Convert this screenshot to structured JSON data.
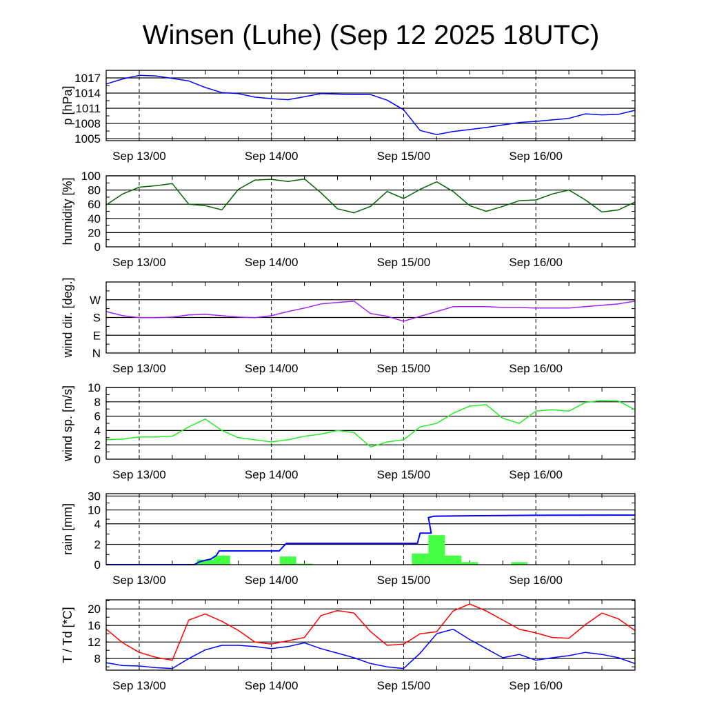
{
  "title": "Winsen (Luhe) (Sep 12 2025 18UTC)",
  "x_hours": [
    0,
    3,
    6,
    9,
    12,
    15,
    18,
    21,
    24,
    27,
    30,
    33,
    36,
    39,
    42,
    45,
    48,
    51,
    54,
    57,
    60,
    63,
    66,
    69,
    72,
    75,
    78,
    81,
    84,
    87,
    90,
    93,
    96
  ],
  "x_range_hours": [
    0,
    96
  ],
  "x_major_ticks": [
    {
      "hour": 6,
      "label": "Sep 13/00"
    },
    {
      "hour": 30,
      "label": "Sep 14/00"
    },
    {
      "hour": 54,
      "label": "Sep 15/00"
    },
    {
      "hour": 78,
      "label": "Sep 16/00"
    }
  ],
  "x_minor_tick_step_hours": 6,
  "chart_data": [
    {
      "id": "pressure",
      "type": "line",
      "ylabel": "p [hPa]",
      "ylim": [
        1004.6,
        1018.5
      ],
      "yticks": [
        {
          "v": 1005,
          "label": "1005"
        },
        {
          "v": 1008,
          "label": "1008"
        },
        {
          "v": 1011,
          "label": "1011"
        },
        {
          "v": 1014,
          "label": "1014"
        },
        {
          "v": 1017,
          "label": "1017"
        }
      ],
      "series": [
        {
          "name": "pressure",
          "color": "#0000ff",
          "values": [
            1015.8,
            1016.8,
            1017.5,
            1017.4,
            1016.9,
            1016.4,
            1015.1,
            1014.1,
            1013.9,
            1013.2,
            1012.9,
            1012.7,
            1013.3,
            1013.9,
            1013.8,
            1013.7,
            1013.7,
            1012.6,
            1010.7,
            1006.6,
            1005.8,
            1006.4,
            1006.8,
            1007.2,
            1007.7,
            1008.2,
            1008.4,
            1008.7,
            1009.0,
            1009.9,
            1009.7,
            1009.8,
            1010.6
          ]
        }
      ]
    },
    {
      "id": "humidity",
      "type": "line",
      "ylabel": "humidity [%]",
      "ylim": [
        0,
        100
      ],
      "yticks": [
        {
          "v": 0,
          "label": "0"
        },
        {
          "v": 20,
          "label": "20"
        },
        {
          "v": 40,
          "label": "40"
        },
        {
          "v": 60,
          "label": "60"
        },
        {
          "v": 80,
          "label": "80"
        },
        {
          "v": 100,
          "label": "100"
        }
      ],
      "series": [
        {
          "name": "humidity",
          "color": "#006400",
          "values": [
            59,
            74.5,
            84,
            86,
            89,
            60,
            58,
            52,
            81,
            94,
            95,
            92,
            95.5,
            76,
            53.5,
            48,
            57,
            78,
            68,
            81,
            91.6,
            78,
            58,
            50,
            57,
            65,
            66,
            74.5,
            80,
            66,
            49,
            52,
            63
          ]
        }
      ]
    },
    {
      "id": "wind-direction",
      "type": "line",
      "ylabel": "wind dir. [deg.]",
      "ylim": [
        0,
        360
      ],
      "yticks": [
        {
          "v": 0,
          "label": "N"
        },
        {
          "v": 90,
          "label": "E"
        },
        {
          "v": 180,
          "label": "S"
        },
        {
          "v": 270,
          "label": "W"
        }
      ],
      "series": [
        {
          "name": "wind direction",
          "color": "#a020f0",
          "values": [
            210,
            189,
            179,
            179,
            182,
            193,
            196,
            189,
            182,
            179,
            189,
            210,
            228,
            249,
            256,
            263,
            200,
            186,
            161,
            186,
            210,
            235,
            235,
            235,
            231,
            231,
            228,
            228,
            228,
            235,
            242,
            249,
            263
          ]
        }
      ]
    },
    {
      "id": "wind-speed",
      "type": "line",
      "ylabel": "wind sp. [m/s]",
      "ylim": [
        0,
        10
      ],
      "yticks": [
        {
          "v": 0,
          "label": "0"
        },
        {
          "v": 2,
          "label": "2"
        },
        {
          "v": 4,
          "label": "4"
        },
        {
          "v": 6,
          "label": "6"
        },
        {
          "v": 8,
          "label": "8"
        },
        {
          "v": 10,
          "label": "10"
        }
      ],
      "series": [
        {
          "name": "wind speed",
          "color": "#22ee22",
          "values": [
            2.7,
            2.8,
            3.1,
            3.1,
            3.2,
            4.5,
            5.6,
            4.0,
            3.0,
            2.7,
            2.4,
            2.7,
            3.2,
            3.5,
            4.0,
            3.7,
            1.7,
            2.4,
            2.7,
            4.5,
            5.0,
            6.4,
            7.4,
            7.6,
            5.7,
            5.0,
            6.7,
            6.9,
            6.7,
            7.9,
            8.2,
            8.1,
            6.9
          ]
        }
      ]
    },
    {
      "id": "rain",
      "type": "bar",
      "ylabel": "rain [mm]",
      "ylim": [
        0,
        35
      ],
      "yscale": "piecewise",
      "yticks": [
        {
          "v": 0,
          "label": "0"
        },
        {
          "v": 2,
          "label": "2"
        },
        {
          "v": 4,
          "label": "4"
        },
        {
          "v": 10,
          "label": "10"
        },
        {
          "v": 30,
          "label": "30"
        }
      ],
      "bars": {
        "name": "3h precipitation",
        "color": "#44ff44",
        "width_hours": 3,
        "hours": [
          18,
          21,
          33,
          36,
          57,
          60,
          63,
          66,
          75
        ],
        "values": [
          0.5,
          0.9,
          0.8,
          0.1,
          1.1,
          2.9,
          0.9,
          0.25,
          0.25
        ]
      },
      "accumulated": {
        "name": "accumulated precipitation",
        "color": "#0000ff",
        "hours": [
          0,
          16,
          17,
          19,
          20,
          20.5,
          31.4,
          32.7,
          56.5,
          57,
          59,
          58.5,
          59.5,
          66,
          78,
          96
        ],
        "values": [
          0,
          0,
          0.3,
          0.55,
          0.9,
          1.35,
          1.35,
          2.1,
          2.1,
          3.1,
          3.1,
          6.7,
          7.3,
          7.5,
          7.7,
          7.8
        ]
      }
    },
    {
      "id": "temperature",
      "type": "line",
      "ylabel": "T / Td [*C]",
      "ylim": [
        5.2,
        22.2
      ],
      "yticks": [
        {
          "v": 8,
          "label": "8"
        },
        {
          "v": 12,
          "label": "12"
        },
        {
          "v": 16,
          "label": "16"
        },
        {
          "v": 20,
          "label": "20"
        }
      ],
      "series": [
        {
          "name": "T",
          "color": "#ff0000",
          "values": [
            15.1,
            11.8,
            9.5,
            8.3,
            7.6,
            17.3,
            18.8,
            17,
            14.8,
            12,
            11.5,
            12.3,
            13.1,
            18.4,
            19.6,
            19,
            14.5,
            11.2,
            11.5,
            14,
            14.5,
            19.5,
            21.2,
            19.5,
            17.3,
            15.1,
            14.2,
            13.1,
            12.9,
            16.2,
            19,
            17.6,
            14.8
          ]
        },
        {
          "name": "Td",
          "color": "#0000ff",
          "values": [
            7.0,
            6.3,
            6.2,
            5.8,
            5.6,
            8,
            10.1,
            11.2,
            11.2,
            10.9,
            10.4,
            10.9,
            11.8,
            10.4,
            9.3,
            8.2,
            6.8,
            6,
            5.6,
            9.3,
            14,
            15.1,
            12.6,
            10.4,
            8.2,
            9,
            7.6,
            8.2,
            8.7,
            9.5,
            9,
            8.2,
            6.8
          ]
        }
      ]
    }
  ]
}
